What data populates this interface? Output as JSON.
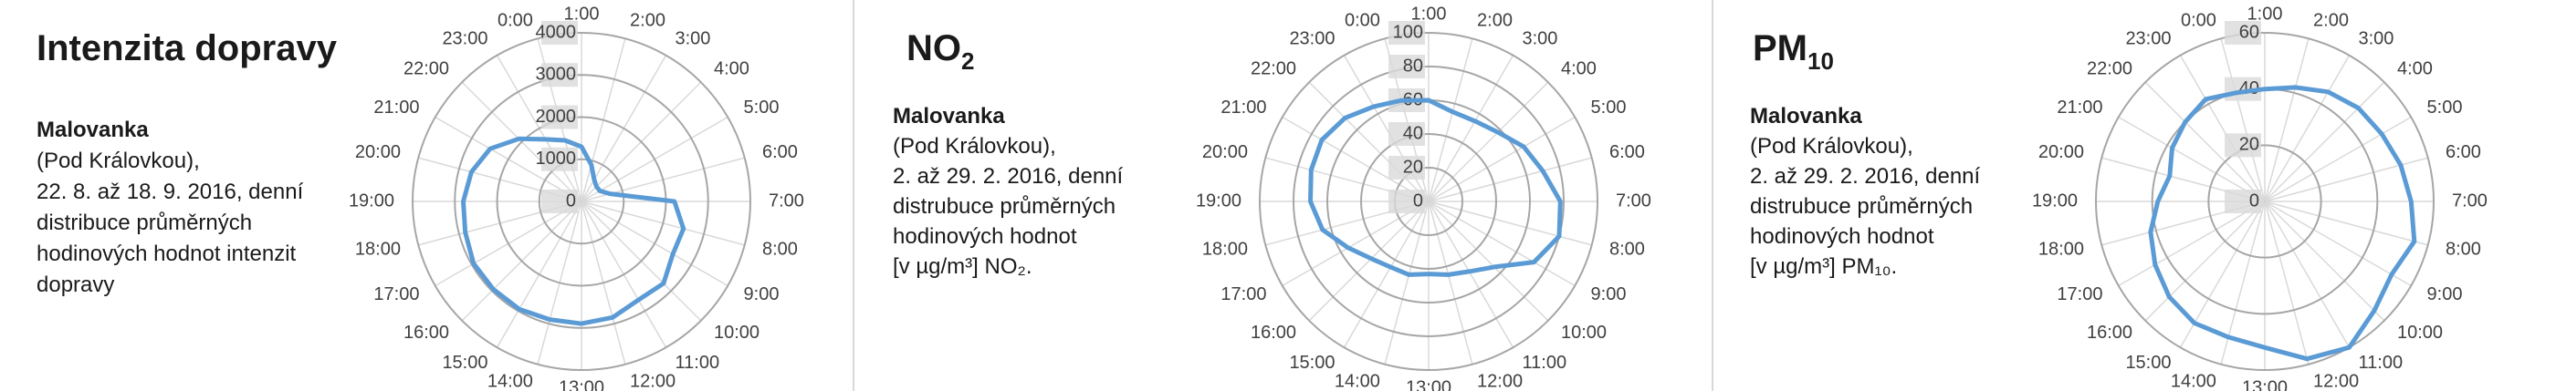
{
  "chart_data": [
    {
      "type": "radar",
      "title": "Intenzita dopravy",
      "description": [
        "Malovanka",
        "(Pod Královkou),",
        "22. 8. až 18. 9. 2016, denní",
        "distribuce průměrných",
        "hodinových hodnot intenzit",
        "dopravy"
      ],
      "categories": [
        "1:00",
        "2:00",
        "3:00",
        "4:00",
        "5:00",
        "6:00",
        "7:00",
        "8:00",
        "9:00",
        "10:00",
        "11:00",
        "12:00",
        "13:00",
        "14:00",
        "15:00",
        "16:00",
        "17:00",
        "18:00",
        "19:00",
        "20:00",
        "21:00",
        "22:00",
        "23:00",
        "0:00"
      ],
      "series": [
        {
          "color": "#5b9bd5",
          "values": [
            1300,
            900,
            600,
            500,
            500,
            700,
            2200,
            2500,
            2500,
            2750,
            2700,
            2850,
            2900,
            2900,
            2950,
            2950,
            2950,
            2850,
            2800,
            2700,
            2500,
            2100,
            1700,
            1500
          ]
        }
      ],
      "ylim": [
        0,
        4000
      ],
      "yticks": [
        0,
        1000,
        2000,
        3000,
        4000
      ]
    },
    {
      "type": "radar",
      "title": "NO",
      "title_sub": "2",
      "description": [
        "Malovanka",
        "(Pod Královkou),",
        "2. až 29. 2. 2016, denní",
        "distrubuce průměrných",
        "hodinových hodnot",
        "[v µg/m³] NO₂."
      ],
      "categories": [
        "1:00",
        "2:00",
        "3:00",
        "4:00",
        "5:00",
        "6:00",
        "7:00",
        "8:00",
        "9:00",
        "10:00",
        "11:00",
        "12:00",
        "13:00",
        "14:00",
        "15:00",
        "16:00",
        "17:00",
        "18:00",
        "19:00",
        "20:00",
        "21:00",
        "22:00",
        "23:00",
        "0:00"
      ],
      "series": [
        {
          "color": "#5b9bd5",
          "values": [
            60,
            55,
            55,
            58,
            65,
            70,
            78,
            80,
            72,
            55,
            48,
            45,
            43,
            45,
            45,
            48,
            55,
            65,
            70,
            72,
            73,
            70,
            65,
            62
          ]
        }
      ],
      "ylim": [
        0,
        100
      ],
      "yticks": [
        0,
        20,
        40,
        60,
        80,
        100
      ]
    },
    {
      "type": "radar",
      "title": "PM",
      "title_sub": "10",
      "description": [
        "Malovanka",
        "(Pod Královkou),",
        "2. až 29. 2. 2016, denní",
        "distrubuce průměrných",
        "hodinových hodnot",
        "[v µg/m³] PM₁₀."
      ],
      "categories": [
        "1:00",
        "2:00",
        "3:00",
        "4:00",
        "5:00",
        "6:00",
        "7:00",
        "8:00",
        "9:00",
        "10:00",
        "11:00",
        "12:00",
        "13:00",
        "14:00",
        "15:00",
        "16:00",
        "17:00",
        "18:00",
        "19:00",
        "20:00",
        "21:00",
        "22:00",
        "23:00",
        "0:00"
      ],
      "series": [
        {
          "color": "#5b9bd5",
          "values": [
            40,
            42,
            45,
            47,
            48,
            50,
            52,
            55,
            52,
            55,
            60,
            58,
            52,
            50,
            50,
            48,
            45,
            42,
            38,
            35,
            38,
            40,
            42,
            40
          ]
        }
      ],
      "ylim": [
        0,
        60
      ],
      "yticks": [
        0,
        20,
        40,
        60
      ]
    }
  ]
}
